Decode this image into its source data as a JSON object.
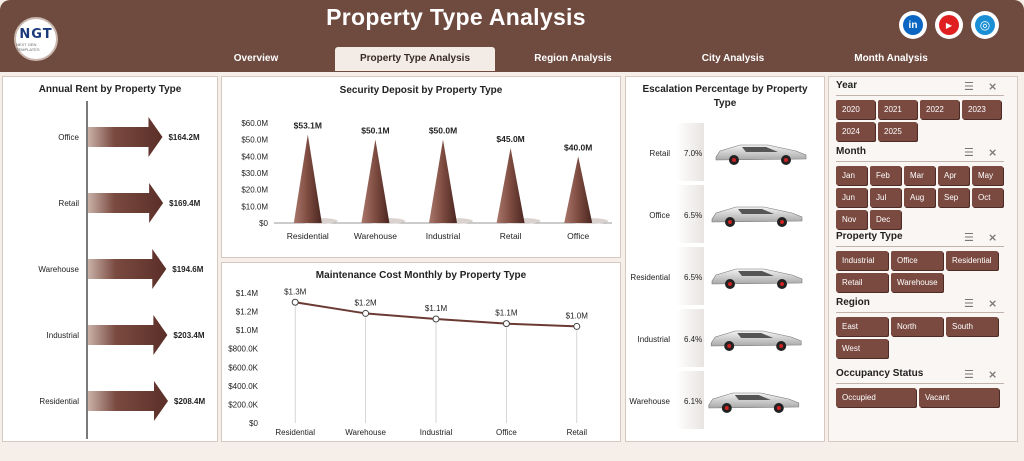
{
  "header": {
    "title": "Property Type Analysis",
    "logo_text": "NGT",
    "logo_subtext": "NEXT GEN TEMPLATES",
    "social": [
      {
        "name": "linkedin-icon",
        "label": "in",
        "color": "#0a66c2"
      },
      {
        "name": "youtube-icon",
        "label": "▶",
        "color": "#e02020"
      },
      {
        "name": "website-icon",
        "label": "◎",
        "color": "#1a8fd6"
      }
    ]
  },
  "tabs": [
    {
      "label": "Overview",
      "active": false
    },
    {
      "label": "Property Type Analysis",
      "active": true
    },
    {
      "label": "Region Analysis",
      "active": false
    },
    {
      "label": "City Analysis",
      "active": false
    },
    {
      "label": "Month Analysis",
      "active": false
    }
  ],
  "annual_rent": {
    "title": "Annual Rent by Property Type",
    "chart_data": {
      "type": "bar",
      "categories": [
        "Office",
        "Retail",
        "Warehouse",
        "Industrial",
        "Residential"
      ],
      "values": [
        164.2,
        169.4,
        194.6,
        203.4,
        208.4
      ],
      "labels": [
        "$164.2M",
        "$169.4M",
        "$194.6M",
        "$203.4M",
        "$208.4M"
      ],
      "title": "Annual Rent by Property Type"
    }
  },
  "security_deposit": {
    "title": "Security Deposit by Property Type",
    "chart_data": {
      "type": "bar",
      "categories": [
        "Residential",
        "Warehouse",
        "Industrial",
        "Retail",
        "Office"
      ],
      "values": [
        53.1,
        50.1,
        50.0,
        45.0,
        40.0
      ],
      "labels": [
        "$53.1M",
        "$50.1M",
        "$50.0M",
        "$45.0M",
        "$40.0M"
      ],
      "yticks": [
        "$60.0M",
        "$50.0M",
        "$40.0M",
        "$30.0M",
        "$20.0M",
        "$10.0M",
        "$0"
      ],
      "ylim": [
        0,
        60
      ],
      "title": "Security Deposit by Property Type"
    }
  },
  "maintenance": {
    "title": "Maintenance Cost Monthly by Property Type",
    "chart_data": {
      "type": "line",
      "categories": [
        "Residential",
        "Warehouse",
        "Industrial",
        "Office",
        "Retail"
      ],
      "values": [
        1.3,
        1.18,
        1.12,
        1.07,
        1.04
      ],
      "labels": [
        "$1.3M",
        "$1.2M",
        "$1.1M",
        "$1.1M",
        "$1.0M"
      ],
      "yticks": [
        "$1.4M",
        "$1.2M",
        "$1.0M",
        "$800.0K",
        "$600.0K",
        "$400.0K",
        "$200.0K",
        "$0"
      ],
      "ylim": [
        0,
        1.4
      ],
      "title": "Maintenance Cost Monthly by Property Type"
    }
  },
  "escalation": {
    "title_line1": "Escalation Percentage by Property",
    "title_line2": "Type",
    "chart_data": {
      "type": "bar",
      "categories": [
        "Retail",
        "Office",
        "Residential",
        "Industrial",
        "Warehouse"
      ],
      "values": [
        7.0,
        6.5,
        6.5,
        6.4,
        6.1
      ],
      "labels": [
        "7.0%",
        "6.5%",
        "6.5%",
        "6.4%",
        "6.1%"
      ],
      "title": "Escalation Percentage by Property Type"
    }
  },
  "slicers": {
    "year": {
      "title": "Year",
      "items": [
        "2020",
        "2021",
        "2022",
        "2023",
        "2024",
        "2025"
      ]
    },
    "month": {
      "title": "Month",
      "items": [
        "Jan",
        "Feb",
        "Mar",
        "Apr",
        "May",
        "Jun",
        "Jul",
        "Aug",
        "Sep",
        "Oct",
        "Nov",
        "Dec"
      ]
    },
    "property_type": {
      "title": "Property Type",
      "items": [
        "Industrial",
        "Office",
        "Residential",
        "Retail",
        "Warehouse"
      ]
    },
    "region": {
      "title": "Region",
      "items": [
        "East",
        "North",
        "South",
        "West"
      ]
    },
    "occupancy": {
      "title": "Occupancy Status",
      "items": [
        "Occupied",
        "Vacant"
      ]
    }
  },
  "colors": {
    "brand": "#6e4a3f",
    "chip": "#7a4a40",
    "bar": "#6b3a33"
  }
}
